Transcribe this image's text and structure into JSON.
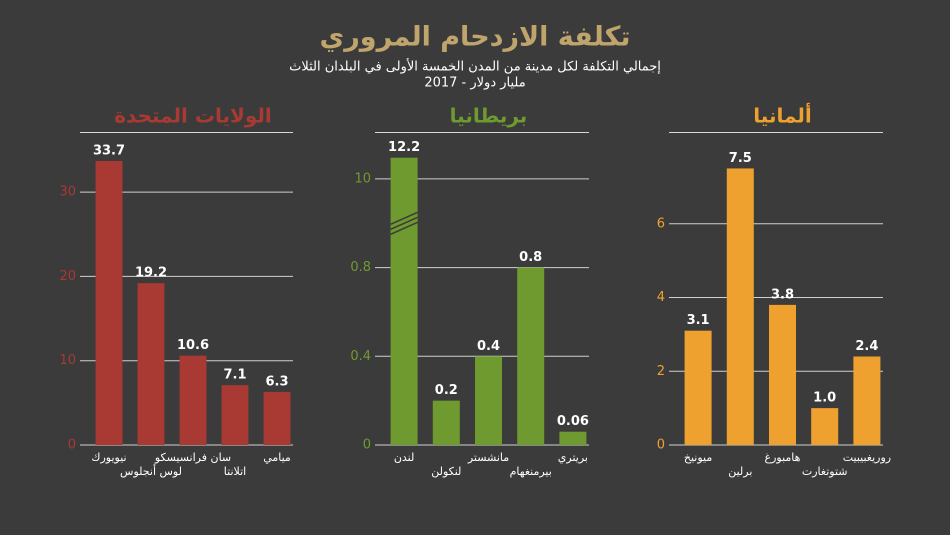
{
  "title": "تكلفة الازدحام المروري",
  "subtitle": [
    "إجمالي التكلفة لكل مدينة من المدن الخمسة الأولى في البلدان الثلاث",
    "2017 - مليار دولار"
  ],
  "chart_data": [
    {
      "type": "bar",
      "title": "الولايات المتحدة",
      "color": "#a83a33",
      "categories": [
        "نيويورك",
        "لوس أنجلوس",
        "سان فرانسيسكو",
        "اتلانتا",
        "ميامي"
      ],
      "values": [
        33.7,
        19.2,
        10.6,
        7.1,
        6.3
      ],
      "ylim": [
        0,
        35
      ],
      "yticks": [
        0,
        10,
        20,
        30
      ],
      "grid": true
    },
    {
      "type": "bar",
      "title": "بريطانيا",
      "color": "#6e9a2f",
      "categories": [
        "لندن",
        "لنكولن",
        "مانشستر",
        "بيرمنغهام",
        "بريتري"
      ],
      "values": [
        12.2,
        0.2,
        0.4,
        0.8,
        0.06
      ],
      "ylim": [
        0,
        13
      ],
      "yticks": [
        0,
        0.4,
        0.8,
        10
      ],
      "broken_axis": true,
      "grid": true
    },
    {
      "type": "bar",
      "title": "ألمانيا",
      "color": "#efa12f",
      "categories": [
        "ميونيخ",
        "برلين",
        "هامبورغ",
        "شتوتغارت",
        "روريغبيبيت"
      ],
      "values": [
        3.1,
        7.5,
        3.8,
        1.0,
        2.4
      ],
      "value_labels": [
        "3.1",
        "7.5",
        "3.8",
        "1.0",
        "2.4"
      ],
      "ylim": [
        0,
        8
      ],
      "yticks": [
        0,
        2,
        4,
        6
      ],
      "grid": true
    }
  ]
}
